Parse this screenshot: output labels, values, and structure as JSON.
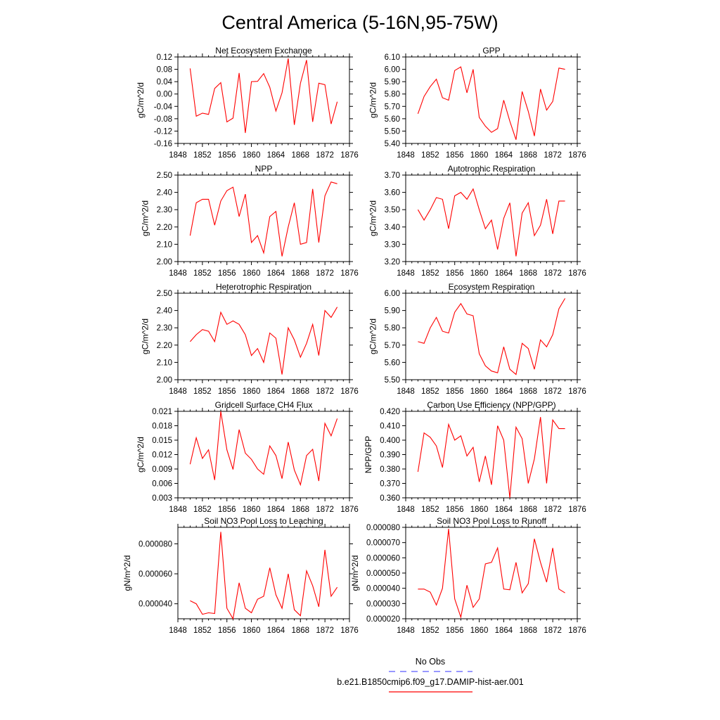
{
  "figure": {
    "title": "Central America (5-16N,95-75W)",
    "legend": [
      {
        "label": "No Obs",
        "color": "#5a5aff",
        "style": "dashed"
      },
      {
        "label": "b.e21.B1850cmip6.f09_g17.DAMIP-hist-aer.001",
        "color": "#ff0000",
        "style": "solid"
      }
    ]
  },
  "chart_data": [
    {
      "type": "line",
      "title": "Net Ecosystem Exchange",
      "ylabel": "gC/m^2/d",
      "xlim": [
        1848,
        1876
      ],
      "ylim": [
        -0.16,
        0.12
      ],
      "xticks": [
        "1848",
        "1852",
        "1856",
        "1860",
        "1864",
        "1868",
        "1872",
        "1876"
      ],
      "yticks": [
        "-0.16",
        "-0.12",
        "-0.08",
        "-0.04",
        "0.00",
        "0.04",
        "0.08",
        "0.12"
      ],
      "series": [
        {
          "color": "#ff0000",
          "x": [
            1850,
            1851,
            1852,
            1853,
            1854,
            1855,
            1856,
            1857,
            1858,
            1859,
            1860,
            1861,
            1862,
            1863,
            1864,
            1865,
            1866,
            1867,
            1868,
            1869,
            1870,
            1871,
            1872,
            1873,
            1874
          ],
          "y": [
            0.083,
            -0.072,
            -0.062,
            -0.066,
            0.018,
            0.037,
            -0.09,
            -0.078,
            0.068,
            -0.126,
            0.04,
            0.041,
            0.066,
            0.022,
            -0.055,
            0.004,
            0.115,
            -0.1,
            0.035,
            0.11,
            -0.09,
            0.035,
            0.03,
            -0.097,
            -0.025
          ]
        }
      ]
    },
    {
      "type": "line",
      "title": "GPP",
      "ylabel": "gC/m^2/d",
      "xlim": [
        1848,
        1876
      ],
      "ylim": [
        5.4,
        6.1
      ],
      "xticks": [
        "1848",
        "1852",
        "1856",
        "1860",
        "1864",
        "1868",
        "1872",
        "1876"
      ],
      "yticks": [
        "5.40",
        "5.50",
        "5.60",
        "5.70",
        "5.80",
        "5.90",
        "6.00",
        "6.10"
      ],
      "series": [
        {
          "color": "#ff0000",
          "x": [
            1850,
            1851,
            1852,
            1853,
            1854,
            1855,
            1856,
            1857,
            1858,
            1859,
            1860,
            1861,
            1862,
            1863,
            1864,
            1865,
            1866,
            1867,
            1868,
            1869,
            1870,
            1871,
            1872,
            1873,
            1874
          ],
          "y": [
            5.64,
            5.78,
            5.86,
            5.92,
            5.77,
            5.75,
            5.99,
            6.02,
            5.81,
            6.0,
            5.61,
            5.54,
            5.49,
            5.52,
            5.75,
            5.58,
            5.43,
            5.82,
            5.66,
            5.46,
            5.84,
            5.67,
            5.74,
            6.01,
            6.0
          ]
        }
      ]
    },
    {
      "type": "line",
      "title": "NPP",
      "ylabel": "gC/m^2/d",
      "xlim": [
        1848,
        1876
      ],
      "ylim": [
        2.0,
        2.5
      ],
      "xticks": [
        "1848",
        "1852",
        "1856",
        "1860",
        "1864",
        "1868",
        "1872",
        "1876"
      ],
      "yticks": [
        "2.00",
        "2.10",
        "2.20",
        "2.30",
        "2.40",
        "2.50"
      ],
      "series": [
        {
          "color": "#ff0000",
          "x": [
            1850,
            1851,
            1852,
            1853,
            1854,
            1855,
            1856,
            1857,
            1858,
            1859,
            1860,
            1861,
            1862,
            1863,
            1864,
            1865,
            1866,
            1867,
            1868,
            1869,
            1870,
            1871,
            1872,
            1873,
            1874
          ],
          "y": [
            2.15,
            2.34,
            2.36,
            2.36,
            2.21,
            2.35,
            2.41,
            2.43,
            2.26,
            2.39,
            2.11,
            2.15,
            2.05,
            2.26,
            2.29,
            2.03,
            2.2,
            2.34,
            2.1,
            2.11,
            2.42,
            2.11,
            2.38,
            2.46,
            2.45
          ]
        }
      ]
    },
    {
      "type": "line",
      "title": "Autotrophic Respiration",
      "ylabel": "gC/m^2/d",
      "xlim": [
        1848,
        1876
      ],
      "ylim": [
        3.2,
        3.7
      ],
      "xticks": [
        "1848",
        "1852",
        "1856",
        "1860",
        "1864",
        "1868",
        "1872",
        "1876"
      ],
      "yticks": [
        "3.20",
        "3.30",
        "3.40",
        "3.50",
        "3.60",
        "3.70"
      ],
      "series": [
        {
          "color": "#ff0000",
          "x": [
            1850,
            1851,
            1852,
            1853,
            1854,
            1855,
            1856,
            1857,
            1858,
            1859,
            1860,
            1861,
            1862,
            1863,
            1864,
            1865,
            1866,
            1867,
            1868,
            1869,
            1870,
            1871,
            1872,
            1873,
            1874
          ],
          "y": [
            3.5,
            3.44,
            3.5,
            3.57,
            3.56,
            3.39,
            3.58,
            3.6,
            3.56,
            3.62,
            3.5,
            3.39,
            3.44,
            3.27,
            3.45,
            3.54,
            3.23,
            3.48,
            3.54,
            3.35,
            3.41,
            3.56,
            3.36,
            3.55,
            3.55
          ]
        }
      ]
    },
    {
      "type": "line",
      "title": "Heterotrophic Respiration",
      "ylabel": "gC/m^2/d",
      "xlim": [
        1848,
        1876
      ],
      "ylim": [
        2.0,
        2.5
      ],
      "xticks": [
        "1848",
        "1852",
        "1856",
        "1860",
        "1864",
        "1868",
        "1872",
        "1876"
      ],
      "yticks": [
        "2.00",
        "2.10",
        "2.20",
        "2.30",
        "2.40",
        "2.50"
      ],
      "series": [
        {
          "color": "#ff0000",
          "x": [
            1850,
            1851,
            1852,
            1853,
            1854,
            1855,
            1856,
            1857,
            1858,
            1859,
            1860,
            1861,
            1862,
            1863,
            1864,
            1865,
            1866,
            1867,
            1868,
            1869,
            1870,
            1871,
            1872,
            1873,
            1874
          ],
          "y": [
            2.22,
            2.26,
            2.29,
            2.28,
            2.22,
            2.39,
            2.32,
            2.34,
            2.32,
            2.26,
            2.14,
            2.18,
            2.1,
            2.27,
            2.24,
            2.03,
            2.3,
            2.23,
            2.13,
            2.21,
            2.32,
            2.14,
            2.4,
            2.36,
            2.42
          ]
        }
      ]
    },
    {
      "type": "line",
      "title": "Ecosystem Respiration",
      "ylabel": "gC/m^2/d",
      "xlim": [
        1848,
        1876
      ],
      "ylim": [
        5.5,
        6.0
      ],
      "xticks": [
        "1848",
        "1852",
        "1856",
        "1860",
        "1864",
        "1868",
        "1872",
        "1876"
      ],
      "yticks": [
        "5.50",
        "5.60",
        "5.70",
        "5.80",
        "5.90",
        "6.00"
      ],
      "series": [
        {
          "color": "#ff0000",
          "x": [
            1850,
            1851,
            1852,
            1853,
            1854,
            1855,
            1856,
            1857,
            1858,
            1859,
            1860,
            1861,
            1862,
            1863,
            1864,
            1865,
            1866,
            1867,
            1868,
            1869,
            1870,
            1871,
            1872,
            1873,
            1874
          ],
          "y": [
            5.72,
            5.71,
            5.8,
            5.86,
            5.78,
            5.77,
            5.89,
            5.94,
            5.88,
            5.87,
            5.65,
            5.58,
            5.55,
            5.54,
            5.69,
            5.56,
            5.53,
            5.71,
            5.68,
            5.56,
            5.73,
            5.69,
            5.76,
            5.91,
            5.97
          ]
        }
      ]
    },
    {
      "type": "line",
      "title": "Gridcell Surface CH4 Flux",
      "ylabel": "gC/m^2/d",
      "xlim": [
        1848,
        1876
      ],
      "ylim": [
        0.003,
        0.021
      ],
      "xticks": [
        "1848",
        "1852",
        "1856",
        "1860",
        "1864",
        "1868",
        "1872",
        "1876"
      ],
      "yticks": [
        "0.003",
        "0.006",
        "0.009",
        "0.012",
        "0.015",
        "0.018",
        "0.021"
      ],
      "series": [
        {
          "color": "#ff0000",
          "x": [
            1850,
            1851,
            1852,
            1853,
            1854,
            1855,
            1856,
            1857,
            1858,
            1859,
            1860,
            1861,
            1862,
            1863,
            1864,
            1865,
            1866,
            1867,
            1868,
            1869,
            1870,
            1871,
            1872,
            1873,
            1874
          ],
          "y": [
            0.01,
            0.0155,
            0.0112,
            0.013,
            0.0067,
            0.021,
            0.013,
            0.0089,
            0.0172,
            0.0123,
            0.011,
            0.009,
            0.0079,
            0.0138,
            0.0118,
            0.007,
            0.0146,
            0.0088,
            0.0057,
            0.0118,
            0.0131,
            0.0065,
            0.0185,
            0.0159,
            0.0195
          ]
        }
      ]
    },
    {
      "type": "line",
      "title": "Carbon Use Efficiency (NPP/GPP)",
      "ylabel": "NPP/GPP",
      "xlim": [
        1848,
        1876
      ],
      "ylim": [
        0.36,
        0.42
      ],
      "xticks": [
        "1848",
        "1852",
        "1856",
        "1860",
        "1864",
        "1868",
        "1872",
        "1876"
      ],
      "yticks": [
        "0.360",
        "0.370",
        "0.380",
        "0.390",
        "0.400",
        "0.410",
        "0.420"
      ],
      "series": [
        {
          "color": "#ff0000",
          "x": [
            1850,
            1851,
            1852,
            1853,
            1854,
            1855,
            1856,
            1857,
            1858,
            1859,
            1860,
            1861,
            1862,
            1863,
            1864,
            1865,
            1866,
            1867,
            1868,
            1869,
            1870,
            1871,
            1872,
            1873,
            1874
          ],
          "y": [
            0.378,
            0.405,
            0.402,
            0.396,
            0.381,
            0.411,
            0.4,
            0.403,
            0.389,
            0.395,
            0.371,
            0.389,
            0.369,
            0.41,
            0.4,
            0.36,
            0.409,
            0.401,
            0.37,
            0.387,
            0.416,
            0.37,
            0.414,
            0.408,
            0.408
          ]
        }
      ]
    },
    {
      "type": "line",
      "title": "Soil NO3 Pool Loss to Leaching",
      "ylabel": "gN/m^2/d",
      "xlim": [
        1848,
        1876
      ],
      "ylim": [
        3e-05,
        9.1e-05
      ],
      "xticks": [
        "1848",
        "1852",
        "1856",
        "1860",
        "1864",
        "1868",
        "1872",
        "1876"
      ],
      "yticks": [
        "0.000040",
        "0.000060",
        "0.000080"
      ],
      "ytick_values": [
        4e-05,
        6e-05,
        8e-05
      ],
      "series": [
        {
          "color": "#ff0000",
          "x": [
            1850,
            1851,
            1852,
            1853,
            1854,
            1855,
            1856,
            1857,
            1858,
            1859,
            1860,
            1861,
            1862,
            1863,
            1864,
            1865,
            1866,
            1867,
            1868,
            1869,
            1870,
            1871,
            1872,
            1873,
            1874
          ],
          "y": [
            4.2e-05,
            4e-05,
            3.3e-05,
            3.4e-05,
            3.35e-05,
            8.8e-05,
            3.7e-05,
            3e-05,
            5.4e-05,
            3.7e-05,
            3.4e-05,
            4.3e-05,
            4.5e-05,
            6.4e-05,
            4.6e-05,
            3.7e-05,
            6e-05,
            3.6e-05,
            3.2e-05,
            6.2e-05,
            5.2e-05,
            3.8e-05,
            7.6e-05,
            4.5e-05,
            5.1e-05
          ]
        }
      ]
    },
    {
      "type": "line",
      "title": "Soil NO3 Pool Loss to Runoff",
      "ylabel": "gN/m^2/d",
      "xlim": [
        1848,
        1876
      ],
      "ylim": [
        2e-05,
        8e-05
      ],
      "xticks": [
        "1848",
        "1852",
        "1856",
        "1860",
        "1864",
        "1868",
        "1872",
        "1876"
      ],
      "yticks": [
        "0.000020",
        "0.000030",
        "0.000040",
        "0.000050",
        "0.000060",
        "0.000070",
        "0.000080"
      ],
      "series": [
        {
          "color": "#ff0000",
          "x": [
            1850,
            1851,
            1852,
            1853,
            1854,
            1855,
            1856,
            1857,
            1858,
            1859,
            1860,
            1861,
            1862,
            1863,
            1864,
            1865,
            1866,
            1867,
            1868,
            1869,
            1870,
            1871,
            1872,
            1873,
            1874
          ],
          "y": [
            3.95e-05,
            3.95e-05,
            3.75e-05,
            2.9e-05,
            4e-05,
            7.9e-05,
            3.3e-05,
            2.1e-05,
            4.2e-05,
            2.75e-05,
            3.3e-05,
            5.6e-05,
            5.7e-05,
            6.65e-05,
            3.95e-05,
            3.9e-05,
            5.7e-05,
            3.7e-05,
            4.3e-05,
            7.25e-05,
            5.7e-05,
            4.4e-05,
            6.65e-05,
            3.95e-05,
            3.7e-05
          ]
        }
      ]
    }
  ]
}
